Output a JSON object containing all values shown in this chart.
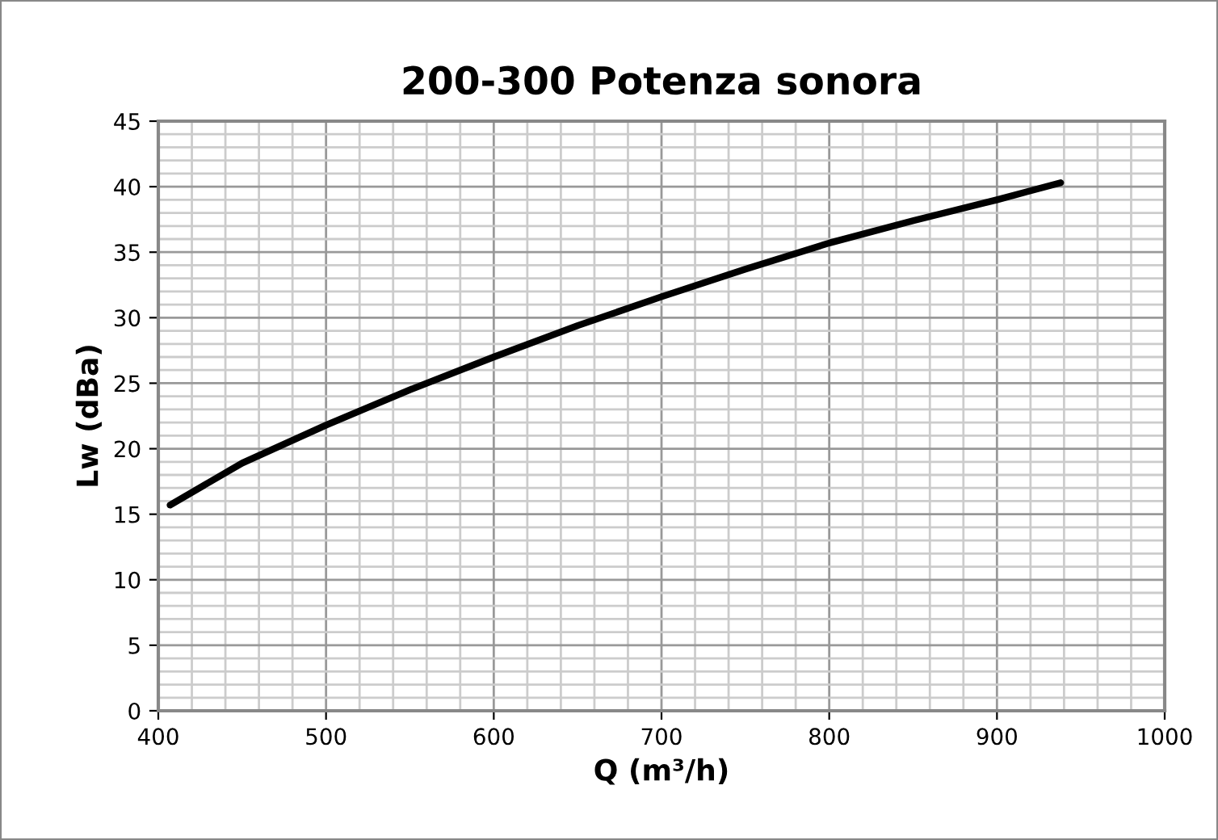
{
  "chart_data": {
    "type": "line",
    "title": "200-300 Potenza sonora",
    "xlabel": "Q (m³/h)",
    "ylabel": "Lw (dBa)",
    "x": [
      407,
      450,
      500,
      550,
      600,
      650,
      700,
      750,
      800,
      850,
      900,
      938
    ],
    "series": [
      {
        "color": "#000000",
        "values": [
          15.7,
          18.9,
          21.8,
          24.5,
          27.0,
          29.4,
          31.6,
          33.7,
          35.7,
          37.4,
          39.0,
          40.3
        ]
      }
    ],
    "xlim": [
      400,
      1000
    ],
    "xticks": [
      400,
      500,
      600,
      700,
      800,
      900,
      1000
    ],
    "ylim": [
      0,
      45
    ],
    "yticks": [
      0,
      5,
      10,
      15,
      20,
      25,
      30,
      35,
      40,
      45
    ],
    "grid": true,
    "legend": false,
    "marker": "none",
    "line_style": "solid"
  }
}
